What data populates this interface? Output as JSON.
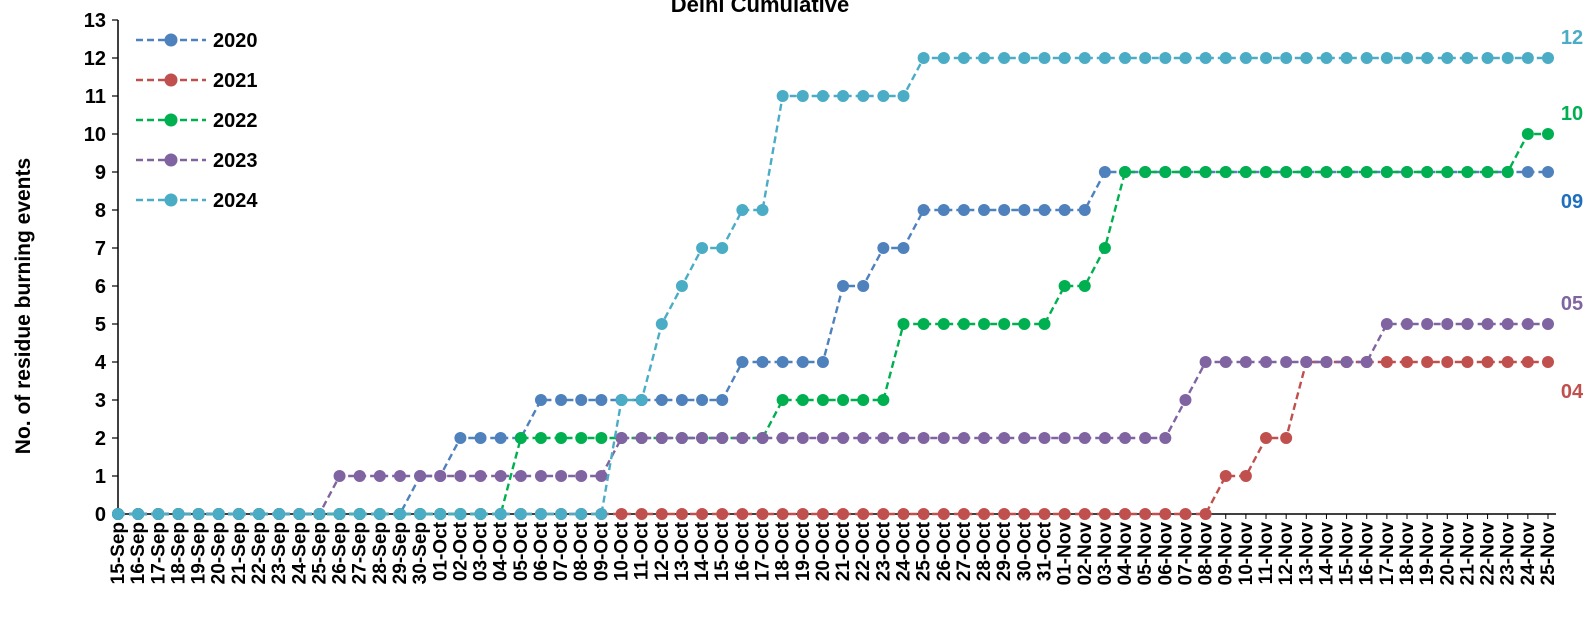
{
  "chart_data": {
    "type": "line",
    "title": "Delhi Cumulative",
    "ylabel": "No. of residue burning events",
    "xlabel": "",
    "ylim": [
      0,
      13
    ],
    "yticks": [
      0,
      1,
      2,
      3,
      4,
      5,
      6,
      7,
      8,
      9,
      10,
      11,
      12,
      13
    ],
    "grid": false,
    "legend_position": "top-left",
    "x": [
      "15-Sep",
      "16-Sep",
      "17-Sep",
      "18-Sep",
      "19-Sep",
      "20-Sep",
      "21-Sep",
      "22-Sep",
      "23-Sep",
      "24-Sep",
      "25-Sep",
      "26-Sep",
      "27-Sep",
      "28-Sep",
      "29-Sep",
      "30-Sep",
      "01-Oct",
      "02-Oct",
      "03-Oct",
      "04-Oct",
      "05-Oct",
      "06-Oct",
      "07-Oct",
      "08-Oct",
      "09-Oct",
      "10-Oct",
      "11-Oct",
      "12-Oct",
      "13-Oct",
      "14-Oct",
      "15-Oct",
      "16-Oct",
      "17-Oct",
      "18-Oct",
      "19-Oct",
      "20-Oct",
      "21-Oct",
      "22-Oct",
      "23-Oct",
      "24-Oct",
      "25-Oct",
      "26-Oct",
      "27-Oct",
      "28-Oct",
      "29-Oct",
      "30-Oct",
      "31-Oct",
      "01-Nov",
      "02-Nov",
      "03-Nov",
      "04-Nov",
      "05-Nov",
      "06-Nov",
      "07-Nov",
      "08-Nov",
      "09-Nov",
      "10-Nov",
      "11-Nov",
      "12-Nov",
      "13-Nov",
      "14-Nov",
      "15-Nov",
      "16-Nov",
      "17-Nov",
      "18-Nov",
      "19-Nov",
      "20-Nov",
      "21-Nov",
      "22-Nov",
      "23-Nov",
      "24-Nov",
      "25-Nov"
    ],
    "series": [
      {
        "name": "2020",
        "color": "#4f81bd",
        "values": [
          0,
          0,
          0,
          0,
          0,
          0,
          0,
          0,
          0,
          0,
          0,
          0,
          0,
          0,
          0,
          1,
          1,
          2,
          2,
          2,
          2,
          3,
          3,
          3,
          3,
          3,
          3,
          3,
          3,
          3,
          3,
          4,
          4,
          4,
          4,
          4,
          6,
          6,
          7,
          7,
          8,
          8,
          8,
          8,
          8,
          8,
          8,
          8,
          8,
          9,
          9,
          9,
          9,
          9,
          9,
          9,
          9,
          9,
          9,
          9,
          9,
          9,
          9,
          9,
          9,
          9,
          9,
          9,
          9,
          9,
          9,
          9
        ]
      },
      {
        "name": "2021",
        "color": "#c0504d",
        "values": [
          0,
          0,
          0,
          0,
          0,
          0,
          0,
          0,
          0,
          0,
          0,
          0,
          0,
          0,
          0,
          0,
          0,
          0,
          0,
          0,
          0,
          0,
          0,
          0,
          0,
          0,
          0,
          0,
          0,
          0,
          0,
          0,
          0,
          0,
          0,
          0,
          0,
          0,
          0,
          0,
          0,
          0,
          0,
          0,
          0,
          0,
          0,
          0,
          0,
          0,
          0,
          0,
          0,
          0,
          0,
          1,
          1,
          2,
          2,
          4,
          4,
          4,
          4,
          4,
          4,
          4,
          4,
          4,
          4,
          4,
          4,
          4
        ]
      },
      {
        "name": "2022",
        "color": "#00b050",
        "values": [
          0,
          0,
          0,
          0,
          0,
          0,
          0,
          0,
          0,
          0,
          0,
          0,
          0,
          0,
          0,
          0,
          0,
          0,
          0,
          0,
          2,
          2,
          2,
          2,
          2,
          2,
          2,
          2,
          2,
          2,
          2,
          2,
          2,
          3,
          3,
          3,
          3,
          3,
          3,
          5,
          5,
          5,
          5,
          5,
          5,
          5,
          5,
          6,
          6,
          7,
          9,
          9,
          9,
          9,
          9,
          9,
          9,
          9,
          9,
          9,
          9,
          9,
          9,
          9,
          9,
          9,
          9,
          9,
          9,
          9,
          10,
          10
        ]
      },
      {
        "name": "2023",
        "color": "#8064a2",
        "values": [
          0,
          0,
          0,
          0,
          0,
          0,
          0,
          0,
          0,
          0,
          0,
          1,
          1,
          1,
          1,
          1,
          1,
          1,
          1,
          1,
          1,
          1,
          1,
          1,
          1,
          2,
          2,
          2,
          2,
          2,
          2,
          2,
          2,
          2,
          2,
          2,
          2,
          2,
          2,
          2,
          2,
          2,
          2,
          2,
          2,
          2,
          2,
          2,
          2,
          2,
          2,
          2,
          2,
          3,
          4,
          4,
          4,
          4,
          4,
          4,
          4,
          4,
          4,
          5,
          5,
          5,
          5,
          5,
          5,
          5,
          5,
          5
        ]
      },
      {
        "name": "2024",
        "color": "#4bacc6",
        "values": [
          0,
          0,
          0,
          0,
          0,
          0,
          0,
          0,
          0,
          0,
          0,
          0,
          0,
          0,
          0,
          0,
          0,
          0,
          0,
          0,
          0,
          0,
          0,
          0,
          0,
          3,
          3,
          5,
          6,
          7,
          7,
          8,
          8,
          11,
          11,
          11,
          11,
          11,
          11,
          11,
          12,
          12,
          12,
          12,
          12,
          12,
          12,
          12,
          12,
          12,
          12,
          12,
          12,
          12,
          12,
          12,
          12,
          12,
          12,
          12,
          12,
          12,
          12,
          12,
          12,
          12,
          12,
          12,
          12,
          12,
          12,
          12
        ]
      }
    ],
    "end_labels": [
      {
        "series": "2024",
        "text": "12",
        "color": "#4bacc6"
      },
      {
        "series": "2022",
        "text": "10",
        "color": "#00b050"
      },
      {
        "series": "2020",
        "text": "09",
        "color": "#1f6fbf"
      },
      {
        "series": "2023",
        "text": "05",
        "color": "#8064a2"
      },
      {
        "series": "2021",
        "text": "04",
        "color": "#c0504d"
      }
    ]
  }
}
